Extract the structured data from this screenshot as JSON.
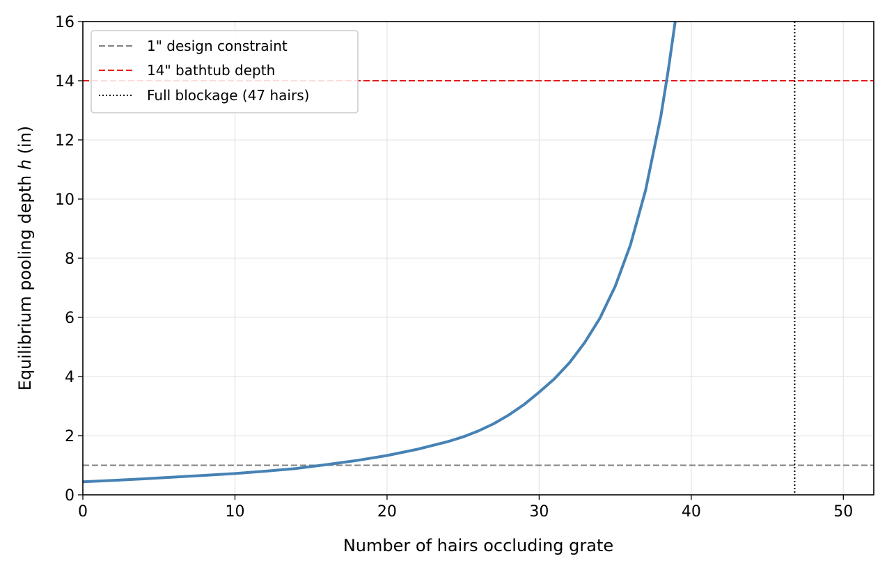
{
  "chart_data": {
    "type": "line",
    "xlabel": "Number of hairs occluding grate",
    "ylabel_main": "Equilibrium pooling depth ",
    "ylabel_var": "h",
    "ylabel_unit": " (in)",
    "xlim": [
      0,
      52
    ],
    "ylim": [
      0,
      16
    ],
    "xticks": [
      0,
      10,
      20,
      30,
      40,
      50
    ],
    "yticks": [
      0,
      2,
      4,
      6,
      8,
      10,
      12,
      14,
      16
    ],
    "grid": true,
    "legend_position": "upper-left",
    "series": [
      {
        "name": "",
        "color": "#4682b4",
        "x": [
          0,
          2,
          4,
          6,
          8,
          10,
          12,
          14,
          16,
          18,
          20,
          22,
          24,
          25,
          26,
          27,
          28,
          29,
          30,
          31,
          32,
          33,
          34,
          35,
          36,
          37,
          38,
          38.5,
          39
        ],
        "y": [
          0.44,
          0.49,
          0.54,
          0.6,
          0.66,
          0.72,
          0.8,
          0.89,
          1.02,
          1.16,
          1.33,
          1.54,
          1.8,
          1.96,
          2.16,
          2.4,
          2.7,
          3.05,
          3.47,
          3.92,
          4.47,
          5.15,
          5.98,
          7.05,
          8.45,
          10.3,
          12.8,
          14.4,
          16.2
        ]
      }
    ],
    "reference_lines": [
      {
        "orientation": "horizontal",
        "value": 1,
        "style": "dashed",
        "color": "#808080",
        "label": "1\" design constraint"
      },
      {
        "orientation": "horizontal",
        "value": 14,
        "style": "dashed",
        "color": "#e41a1c",
        "label": "14\" bathtub depth"
      },
      {
        "orientation": "vertical",
        "value": 46.8,
        "style": "dotted",
        "color": "#000000",
        "label": "Full blockage (47 hairs)"
      }
    ]
  }
}
